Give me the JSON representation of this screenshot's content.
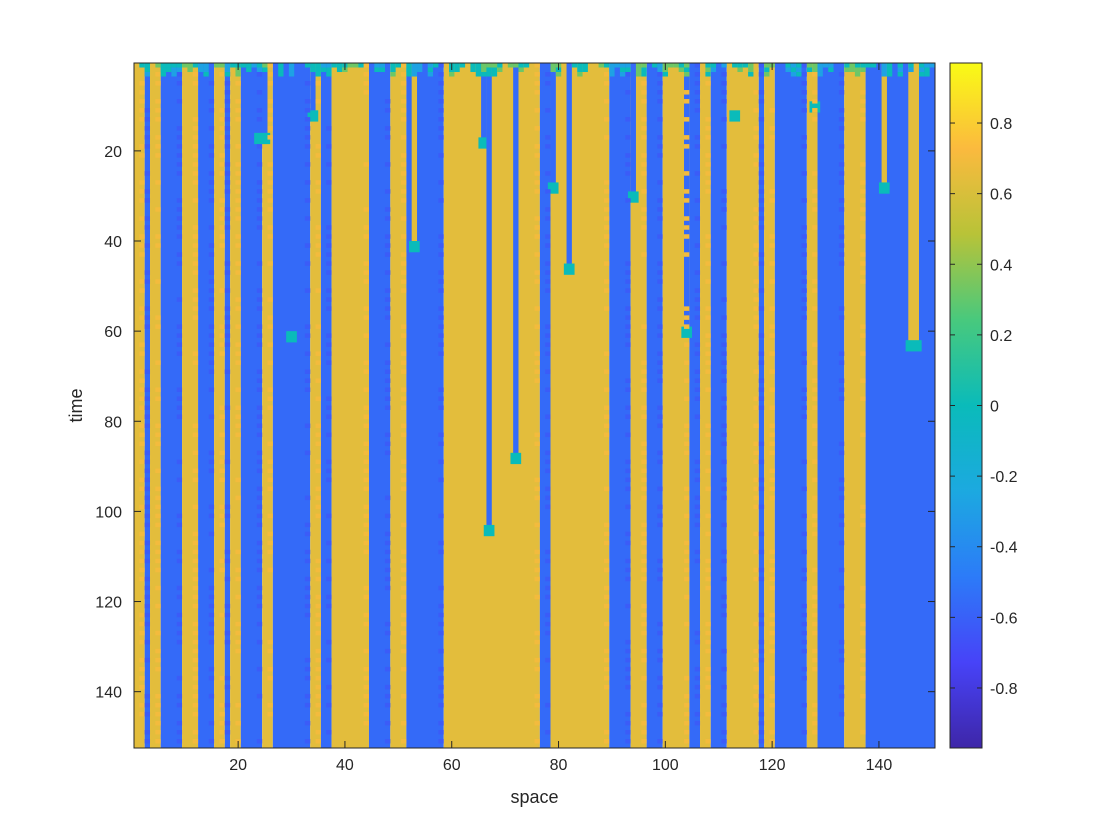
{
  "chart_data": {
    "type": "heatmap",
    "title": "",
    "xlabel": "space",
    "ylabel": "time",
    "xlim": [
      0.5,
      150.5
    ],
    "ylim": [
      0.5,
      152.5
    ],
    "y_reversed": true,
    "clim": [
      -0.97,
      0.97
    ],
    "colormap": "parula",
    "x_ticks": [
      20,
      40,
      60,
      80,
      100,
      120,
      140
    ],
    "y_ticks": [
      20,
      40,
      60,
      80,
      100,
      120,
      140
    ],
    "colorbar_ticks": [
      0.8,
      0.6,
      0.4,
      0.2,
      0,
      -0.2,
      -0.4,
      -0.6,
      -0.8
    ],
    "colorbar_tick_labels": [
      "0.8",
      "0.6",
      "0.4",
      "0.2",
      "0",
      "-0.2",
      "-0.4",
      "-0.6",
      "-0.8"
    ],
    "value_high": 0.64,
    "value_low": -0.56,
    "value_transition": 0.0,
    "rows": 152,
    "cols": 150,
    "bands": [
      {
        "x": [
          1,
          2
        ],
        "v": 0.64
      },
      {
        "x": [
          3,
          3
        ],
        "v": -0.56
      },
      {
        "x": [
          4,
          5
        ],
        "v": 0.64
      },
      {
        "x": [
          6,
          9
        ],
        "v": -0.56
      },
      {
        "x": [
          10,
          12
        ],
        "v": 0.64
      },
      {
        "x": [
          13,
          15
        ],
        "v": -0.56
      },
      {
        "x": [
          16,
          17
        ],
        "v": 0.64
      },
      {
        "x": [
          18,
          18
        ],
        "v": -0.56
      },
      {
        "x": [
          19,
          20
        ],
        "v": 0.64
      },
      {
        "x": [
          21,
          24
        ],
        "v": -0.56
      },
      {
        "x": [
          25,
          26
        ],
        "v": 0.64
      },
      {
        "x": [
          27,
          33
        ],
        "v": -0.56
      },
      {
        "x": [
          34,
          35
        ],
        "v": 0.64
      },
      {
        "x": [
          36,
          37
        ],
        "v": -0.56
      },
      {
        "x": [
          38,
          44
        ],
        "v": 0.64
      },
      {
        "x": [
          45,
          48
        ],
        "v": -0.56
      },
      {
        "x": [
          49,
          51
        ],
        "v": 0.64
      },
      {
        "x": [
          52,
          58
        ],
        "v": -0.56
      },
      {
        "x": [
          59,
          76
        ],
        "v": 0.64
      },
      {
        "x": [
          77,
          78
        ],
        "v": -0.56
      },
      {
        "x": [
          79,
          89
        ],
        "v": 0.64
      },
      {
        "x": [
          90,
          93
        ],
        "v": -0.56
      },
      {
        "x": [
          94,
          96
        ],
        "v": 0.64
      },
      {
        "x": [
          97,
          99
        ],
        "v": -0.56
      },
      {
        "x": [
          100,
          104
        ],
        "v": 0.64
      },
      {
        "x": [
          105,
          106
        ],
        "v": -0.56
      },
      {
        "x": [
          107,
          108
        ],
        "v": 0.64
      },
      {
        "x": [
          109,
          111
        ],
        "v": -0.56
      },
      {
        "x": [
          112,
          117
        ],
        "v": 0.64
      },
      {
        "x": [
          118,
          118
        ],
        "v": -0.56
      },
      {
        "x": [
          119,
          120
        ],
        "v": 0.64
      },
      {
        "x": [
          121,
          126
        ],
        "v": -0.56
      },
      {
        "x": [
          127,
          128
        ],
        "v": 0.64
      },
      {
        "x": [
          129,
          133
        ],
        "v": -0.56
      },
      {
        "x": [
          134,
          137
        ],
        "v": 0.64
      },
      {
        "x": [
          138,
          150
        ],
        "v": -0.56
      }
    ],
    "collapsing_columns": [
      {
        "x": [
          24,
          25
        ],
        "v": -0.56,
        "until": 17
      },
      {
        "x": [
          30,
          30
        ],
        "v": -0.56,
        "until": 61
      },
      {
        "x": [
          34,
          34
        ],
        "v": -0.56,
        "until": 12
      },
      {
        "x": [
          53,
          53
        ],
        "v": 0.64,
        "until": 41
      },
      {
        "x": [
          66,
          66
        ],
        "v": -0.56,
        "until": 18
      },
      {
        "x": [
          67,
          67
        ],
        "v": -0.56,
        "until": 104
      },
      {
        "x": [
          72,
          72
        ],
        "v": -0.56,
        "until": 88
      },
      {
        "x": [
          79,
          79
        ],
        "v": -0.56,
        "until": 28
      },
      {
        "x": [
          82,
          82
        ],
        "v": -0.56,
        "until": 46
      },
      {
        "x": [
          94,
          94
        ],
        "v": -0.56,
        "until": 30
      },
      {
        "x": [
          104,
          104
        ],
        "v": -0.56,
        "until": 60
      },
      {
        "x": [
          113,
          113
        ],
        "v": 0.64,
        "until": 12
      },
      {
        "x": [
          128,
          128
        ],
        "v": 0.64,
        "until": 10
      },
      {
        "x": [
          141,
          141
        ],
        "v": 0.64,
        "until": 28
      },
      {
        "x": [
          146,
          147
        ],
        "v": 0.64,
        "until": 63
      }
    ]
  }
}
